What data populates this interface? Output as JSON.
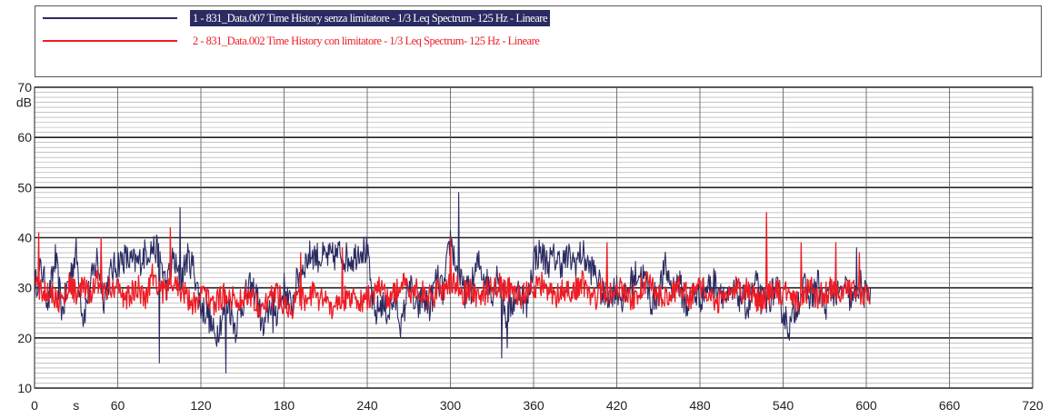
{
  "colors": {
    "series1": "#2b2b63",
    "series2": "#ee1c25",
    "legend_highlight": "#2b2b63"
  },
  "chart_data": {
    "type": "line",
    "xlabel": "s",
    "ylabel": "dB",
    "xlim": [
      0,
      720
    ],
    "ylim": [
      10,
      70
    ],
    "x_ticks": [
      0,
      60,
      120,
      180,
      240,
      300,
      360,
      420,
      480,
      540,
      600,
      660,
      720
    ],
    "y_ticks": [
      10,
      20,
      30,
      40,
      50,
      60,
      70
    ],
    "grid": true,
    "legend_position": "top",
    "series": [
      {
        "name": "1 - 831_Data.007 Time History senza limitatore - 1/3 Leq Spectrum- 125 Hz - Lineare",
        "color": "#2b2b63",
        "x": [
          0,
          5,
          10,
          15,
          20,
          25,
          30,
          35,
          40,
          45,
          50,
          55,
          60,
          65,
          70,
          75,
          80,
          85,
          90,
          95,
          100,
          105,
          110,
          115,
          120,
          125,
          130,
          135,
          140,
          145,
          150,
          155,
          160,
          165,
          170,
          175,
          180,
          185,
          190,
          195,
          200,
          205,
          210,
          215,
          220,
          225,
          230,
          235,
          240,
          245,
          250,
          255,
          260,
          265,
          270,
          275,
          280,
          285,
          290,
          295,
          300,
          305,
          310,
          315,
          320,
          325,
          330,
          335,
          340,
          345,
          350,
          355,
          360,
          365,
          370,
          375,
          380,
          385,
          390,
          395,
          400,
          405,
          410,
          415,
          420,
          425,
          430,
          435,
          440,
          445,
          450,
          455,
          460,
          465,
          470,
          475,
          480,
          485,
          490,
          495,
          500,
          505,
          510,
          515,
          520,
          525,
          530,
          535,
          540,
          545,
          550,
          555,
          560,
          565,
          570,
          575,
          580,
          585,
          590,
          595,
          600,
          603
        ],
        "y": [
          30,
          34,
          27,
          36,
          25,
          32,
          37,
          24,
          30,
          36,
          28,
          33,
          35,
          36,
          35,
          35,
          37,
          38,
          37,
          30,
          36,
          31,
          36,
          34,
          26,
          25,
          20,
          24,
          27,
          22,
          27,
          30,
          29,
          21,
          27,
          25,
          30,
          26,
          32,
          35,
          37,
          36,
          36,
          36,
          37,
          36,
          36,
          38,
          37,
          24,
          27,
          25,
          28,
          22,
          32,
          25,
          28,
          26,
          32,
          29,
          40,
          33,
          29,
          30,
          35,
          32,
          29,
          34,
          24,
          27,
          30,
          26,
          36,
          37,
          35,
          36,
          35,
          36,
          35,
          37,
          34,
          33,
          28,
          29,
          30,
          27,
          31,
          33,
          32,
          27,
          29,
          34,
          30,
          31,
          26,
          29,
          28,
          30,
          31,
          30,
          27,
          29,
          28,
          26,
          31,
          27,
          28,
          30,
          25,
          22,
          27,
          30,
          28,
          31,
          26,
          30,
          28,
          30,
          27,
          31,
          28,
          30
        ],
        "highlights": [
          [
            90,
            15
          ],
          [
            105,
            46
          ],
          [
            138,
            13
          ],
          [
            172,
            21
          ],
          [
            306,
            49
          ],
          [
            337,
            16
          ],
          [
            341,
            18
          ],
          [
            593,
            38
          ]
        ]
      },
      {
        "name": "2 - 831_Data.002 Time History con limitatore - 1/3 Leq Spectrum- 125 Hz - Lineare",
        "color": "#ee1c25",
        "x": [
          0,
          5,
          10,
          15,
          20,
          25,
          30,
          35,
          40,
          45,
          50,
          55,
          60,
          65,
          70,
          75,
          80,
          85,
          90,
          95,
          100,
          105,
          110,
          115,
          120,
          125,
          130,
          135,
          140,
          145,
          150,
          155,
          160,
          165,
          170,
          175,
          180,
          185,
          190,
          195,
          200,
          205,
          210,
          215,
          220,
          225,
          230,
          235,
          240,
          245,
          250,
          255,
          260,
          265,
          270,
          275,
          280,
          285,
          290,
          295,
          300,
          305,
          310,
          315,
          320,
          325,
          330,
          335,
          340,
          345,
          350,
          355,
          360,
          365,
          370,
          375,
          380,
          385,
          390,
          395,
          400,
          405,
          410,
          415,
          420,
          425,
          430,
          435,
          440,
          445,
          450,
          455,
          460,
          465,
          470,
          475,
          480,
          485,
          490,
          495,
          500,
          505,
          510,
          515,
          520,
          525,
          530,
          535,
          540,
          545,
          550,
          555,
          560,
          565,
          570,
          575,
          580,
          585,
          590,
          595,
          600,
          603
        ],
        "y": [
          32,
          29,
          30,
          28,
          27,
          31,
          29,
          30,
          28,
          32,
          29,
          30,
          31,
          27,
          29,
          30,
          28,
          33,
          30,
          29,
          31,
          30,
          28,
          27,
          29,
          28,
          27,
          28,
          29,
          27,
          28,
          29,
          27,
          26,
          28,
          29,
          27,
          26,
          28,
          27,
          29,
          27,
          28,
          26,
          27,
          28,
          29,
          27,
          28,
          29,
          30,
          28,
          29,
          31,
          29,
          30,
          29,
          28,
          29,
          30,
          31,
          30,
          29,
          30,
          28,
          29,
          30,
          31,
          29,
          30,
          28,
          29,
          30,
          31,
          29,
          28,
          30,
          29,
          30,
          31,
          29,
          28,
          30,
          29,
          30,
          29,
          28,
          29,
          31,
          30,
          29,
          28,
          29,
          30,
          29,
          28,
          30,
          29,
          28,
          27,
          29,
          30,
          29,
          30,
          28,
          27,
          29,
          30,
          28,
          30,
          27,
          29,
          30,
          28,
          29,
          30,
          28,
          29,
          30,
          28,
          29,
          27
        ],
        "highlights": [
          [
            3,
            41
          ],
          [
            48,
            40
          ],
          [
            98,
            42
          ],
          [
            192,
            37
          ],
          [
            222,
            38
          ],
          [
            300,
            40
          ],
          [
            413,
            39
          ],
          [
            528,
            45
          ],
          [
            553,
            39
          ],
          [
            578,
            39
          ],
          [
            595,
            37
          ]
        ]
      }
    ]
  }
}
